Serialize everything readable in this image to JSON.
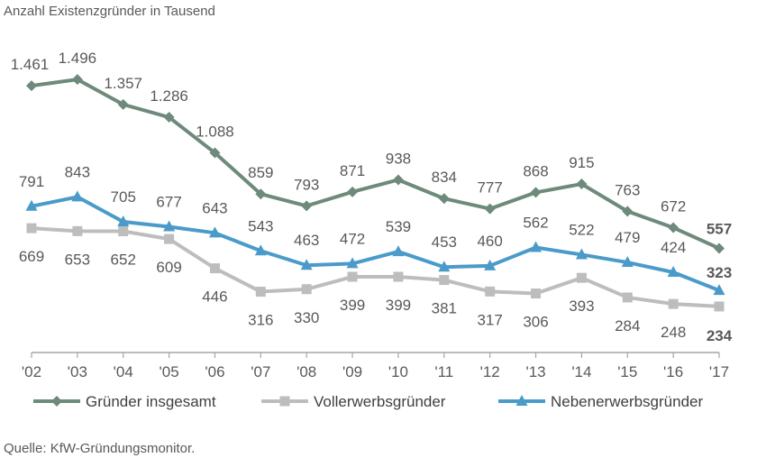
{
  "title": "Anzahl Existenzgründer in Tausend",
  "source": "Quelle: KfW-Gründungsmonitor.",
  "chart_data": {
    "type": "line",
    "title": "Anzahl Existenzgründer in Tausend",
    "x": [
      "'02",
      "'03",
      "'04",
      "'05",
      "'06",
      "'07",
      "'08",
      "'09",
      "'10",
      "'11",
      "'12",
      "'13",
      "'14",
      "'15",
      "'16",
      "'17"
    ],
    "ylim": [
      0,
      1600
    ],
    "grid": false,
    "legend_position": "bottom",
    "series": [
      {
        "name": "Gründer insgesamt",
        "color": "#6E8A7B",
        "marker": "diamond",
        "values": [
          1461,
          1496,
          1357,
          1286,
          1088,
          859,
          793,
          871,
          938,
          834,
          777,
          868,
          915,
          763,
          672,
          557
        ],
        "labels": [
          "1.461",
          "1.496",
          "1.357",
          "1.286",
          "1.088",
          "859",
          "793",
          "871",
          "938",
          "834",
          "777",
          "868",
          "915",
          "763",
          "672",
          "557"
        ]
      },
      {
        "name": "Vollerwerbsgründer",
        "color": "#BDBDBD",
        "marker": "square",
        "values": [
          669,
          653,
          652,
          609,
          446,
          316,
          330,
          399,
          399,
          381,
          317,
          306,
          393,
          284,
          248,
          234
        ],
        "labels": [
          "669",
          "653",
          "652",
          "609",
          "446",
          "316",
          "330",
          "399",
          "399",
          "381",
          "317",
          "306",
          "393",
          "284",
          "248",
          "234"
        ]
      },
      {
        "name": "Nebenerwerbsgründer",
        "color": "#4A9BC9",
        "marker": "triangle",
        "values": [
          791,
          843,
          705,
          677,
          643,
          543,
          463,
          472,
          539,
          453,
          460,
          562,
          522,
          479,
          424,
          323
        ],
        "labels": [
          "791",
          "843",
          "705",
          "677",
          "643",
          "543",
          "463",
          "472",
          "539",
          "453",
          "460",
          "562",
          "522",
          "479",
          "424",
          "323"
        ]
      }
    ]
  }
}
